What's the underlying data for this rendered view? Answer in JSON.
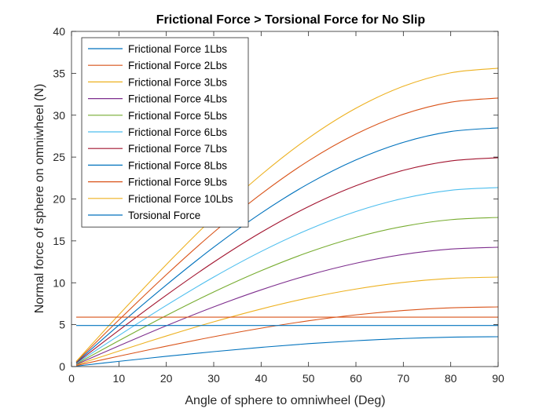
{
  "chart_data": {
    "type": "line",
    "title": "Frictional Force > Torsional Force for No Slip",
    "xlabel": "Angle of sphere to omniwheel (Deg)",
    "ylabel": "Normal force of sphere on omniwheel (N)",
    "xlim": [
      0,
      90
    ],
    "ylim": [
      0,
      40
    ],
    "xticks": [
      "0",
      "10",
      "20",
      "30",
      "40",
      "50",
      "60",
      "70",
      "80",
      "90"
    ],
    "yticks": [
      "0",
      "5",
      "10",
      "15",
      "20",
      "25",
      "30",
      "35",
      "40"
    ],
    "grid": false,
    "legend_position": "top-left",
    "x": [
      1,
      10,
      20,
      30,
      40,
      50,
      60,
      70,
      80,
      90
    ],
    "series": [
      {
        "name": "Frictional Force 1Lbs",
        "color": "#0072BD",
        "values": [
          0.06,
          0.62,
          1.22,
          1.78,
          2.29,
          2.73,
          3.08,
          3.35,
          3.51,
          3.56
        ]
      },
      {
        "name": "Frictional Force 2Lbs",
        "color": "#D95319",
        "values": [
          0.12,
          1.24,
          2.43,
          3.56,
          4.58,
          5.46,
          6.17,
          6.69,
          7.01,
          7.12
        ]
      },
      {
        "name": "Frictional Force 3Lbs",
        "color": "#EDB120",
        "values": [
          0.19,
          1.85,
          3.65,
          5.34,
          6.87,
          8.19,
          9.25,
          10.04,
          10.52,
          10.68
        ]
      },
      {
        "name": "Frictional Force 4Lbs",
        "color": "#7E2F8E",
        "values": [
          0.25,
          2.47,
          4.87,
          7.12,
          9.15,
          10.91,
          12.33,
          13.38,
          14.02,
          14.24
        ]
      },
      {
        "name": "Frictional Force 5Lbs",
        "color": "#77AC30",
        "values": [
          0.31,
          3.09,
          6.09,
          8.9,
          11.44,
          13.64,
          15.42,
          16.73,
          17.53,
          17.8
        ]
      },
      {
        "name": "Frictional Force 6Lbs",
        "color": "#4DBEEE",
        "values": [
          0.37,
          3.71,
          7.3,
          10.68,
          13.73,
          16.36,
          18.5,
          20.07,
          21.04,
          21.36
        ]
      },
      {
        "name": "Frictional Force 7Lbs",
        "color": "#A2142F",
        "values": [
          0.43,
          4.33,
          8.52,
          12.46,
          16.02,
          19.09,
          21.58,
          23.42,
          24.54,
          24.92
        ]
      },
      {
        "name": "Frictional Force 8Lbs",
        "color": "#0072BD",
        "values": [
          0.5,
          4.95,
          9.74,
          14.24,
          18.31,
          21.82,
          24.66,
          26.76,
          28.05,
          28.48
        ]
      },
      {
        "name": "Frictional Force 9Lbs",
        "color": "#D95319",
        "values": [
          0.56,
          5.56,
          10.96,
          16.02,
          20.59,
          24.55,
          27.75,
          30.11,
          31.55,
          32.04
        ]
      },
      {
        "name": "Frictional Force 10Lbs",
        "color": "#EDB120",
        "values": [
          0.62,
          6.18,
          12.17,
          17.8,
          22.88,
          27.27,
          30.83,
          33.45,
          35.06,
          35.6
        ]
      },
      {
        "name": "Torsional Force",
        "color": "#0072BD",
        "values": [
          4.9,
          4.9,
          4.9,
          4.9,
          4.9,
          4.9,
          4.9,
          4.9,
          4.9,
          4.9
        ]
      }
    ],
    "extra_lines": [
      {
        "color": "#D95319",
        "y": 5.9
      }
    ]
  }
}
